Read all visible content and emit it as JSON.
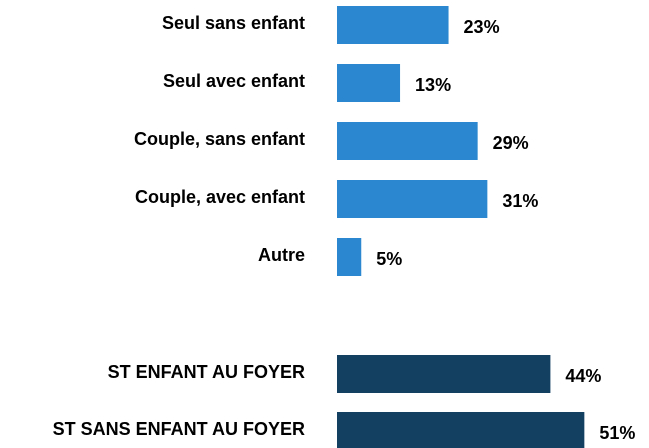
{
  "chart_data": [
    {
      "type": "bar",
      "orientation": "horizontal",
      "color": "#2b88d0",
      "categories": [
        "Seul sans enfant",
        "Seul avec enfant",
        "Couple, sans enfant",
        "Couple, avec enfant",
        "Autre"
      ],
      "values": [
        23,
        13,
        29,
        31,
        5
      ],
      "value_labels": [
        "23%",
        "13%",
        "29%",
        "31%",
        "5%"
      ]
    },
    {
      "type": "bar",
      "orientation": "horizontal",
      "color": "#133f61",
      "categories": [
        "ST ENFANT AU FOYER",
        "ST SANS ENFANT AU FOYER"
      ],
      "values": [
        44,
        51
      ],
      "value_labels": [
        "44%",
        "51%"
      ]
    }
  ]
}
